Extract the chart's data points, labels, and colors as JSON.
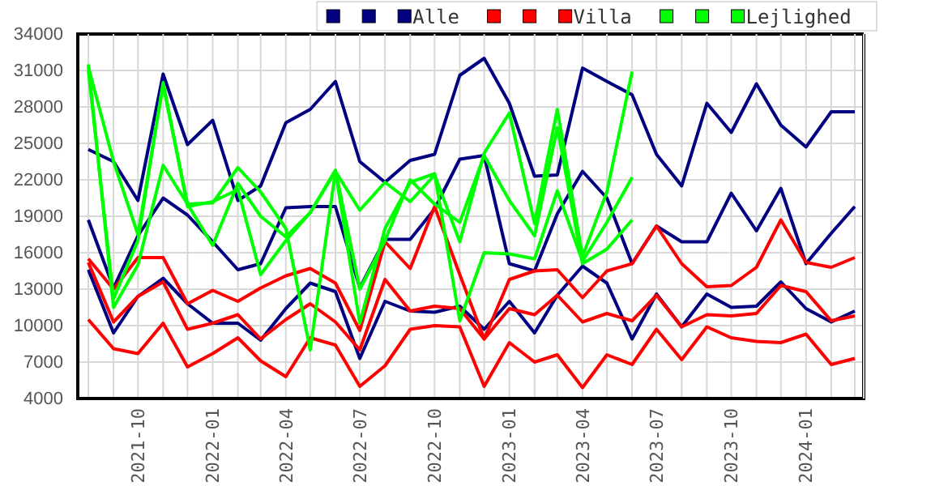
{
  "chart_data": {
    "type": "line",
    "x": [
      "2021-08",
      "2021-09",
      "2021-10",
      "2021-11",
      "2021-12",
      "2022-01",
      "2022-02",
      "2022-03",
      "2022-04",
      "2022-05",
      "2022-06",
      "2022-07",
      "2022-08",
      "2022-09",
      "2022-10",
      "2022-11",
      "2022-12",
      "2023-01",
      "2023-02",
      "2023-03",
      "2023-04",
      "2023-05",
      "2023-06",
      "2023-07",
      "2023-08",
      "2023-09",
      "2023-10",
      "2023-11",
      "2023-12",
      "2024-01",
      "2024-02",
      "2024-03"
    ],
    "series": [
      {
        "color": "#000080",
        "values": [
          24500,
          23500,
          20300,
          30700,
          24900,
          26900,
          20300,
          21500,
          26700,
          27800,
          30100,
          23500,
          21800,
          23600,
          24100,
          30600,
          32000,
          28300,
          22300,
          22400,
          31200,
          30100,
          29000,
          24100,
          21500,
          28300,
          25900,
          29900,
          26500,
          24700,
          27600,
          27600
        ]
      },
      {
        "color": "#000080",
        "values": [
          18700,
          13100,
          17400,
          20500,
          19100,
          16900,
          14600,
          15100,
          19700,
          19800,
          19800,
          13100,
          17100,
          17100,
          19600,
          23700,
          24000,
          15100,
          14500,
          19200,
          22700,
          20500,
          15100,
          18200,
          16900,
          16900,
          20900,
          17800,
          21300,
          15100,
          17600,
          19800
        ]
      },
      {
        "name": "Alle",
        "color": "#000080",
        "values": [
          14600,
          9400,
          12400,
          13900,
          11800,
          10200,
          10200,
          8800,
          11400,
          13500,
          12800,
          7300,
          12000,
          11200,
          11100,
          11600,
          9700,
          12000,
          9400,
          12500,
          14900,
          13500,
          8900,
          12600,
          9900,
          12600,
          11500,
          11600,
          13600,
          11400,
          10300,
          11200
        ]
      },
      {
        "color": "#ff0000",
        "values": [
          15500,
          13000,
          15600,
          15600,
          11800,
          12900,
          12000,
          13100,
          14100,
          14700,
          13500,
          9600,
          16900,
          14700,
          19800,
          14200,
          8900,
          13800,
          14500,
          14600,
          12300,
          14500,
          15100,
          18200,
          15100,
          13200,
          13300,
          14800,
          18700,
          15200,
          14800,
          15600
        ]
      },
      {
        "color": "#ff0000",
        "values": [
          15200,
          10300,
          12400,
          13600,
          9700,
          10200,
          10900,
          8900,
          10500,
          11800,
          10300,
          8000,
          13800,
          11200,
          11600,
          11400,
          8900,
          11400,
          10900,
          12500,
          10300,
          11000,
          10400,
          12500,
          9900,
          10900,
          10800,
          11000,
          13300,
          12800,
          10400,
          10800
        ]
      },
      {
        "name": "Villa",
        "color": "#ff0000",
        "values": [
          10500,
          8100,
          7700,
          10200,
          6600,
          7700,
          9000,
          7100,
          5800,
          9000,
          8400,
          5000,
          6700,
          9700,
          10000,
          9900,
          5000,
          8600,
          7000,
          7600,
          4900,
          7600,
          6800,
          9700,
          7200,
          9900,
          9000,
          8700,
          8600,
          9300,
          6800,
          7300
        ]
      },
      {
        "color": "#00ff00",
        "values": [
          31300,
          23500,
          17500,
          29800,
          20000,
          20100,
          23000,
          21000,
          18000,
          8000,
          22700,
          19500,
          21800,
          20200,
          22400,
          16900,
          24200,
          27500,
          18400,
          27800,
          15700,
          21000,
          30900,
          null,
          null,
          null,
          null,
          null,
          null,
          null,
          null,
          null
        ]
      },
      {
        "color": "#00ff00",
        "values": [
          31500,
          11500,
          15000,
          23200,
          20000,
          16600,
          21700,
          19000,
          17300,
          19300,
          22700,
          10200,
          18000,
          21800,
          22500,
          10400,
          16000,
          15900,
          15500,
          21100,
          15300,
          18500,
          22200,
          null,
          null,
          null,
          null,
          null,
          null,
          null,
          null,
          null
        ]
      },
      {
        "name": "Lejlighed",
        "color": "#00ff00",
        "values": [
          31000,
          12200,
          17000,
          30000,
          19800,
          20200,
          21200,
          14200,
          17000,
          19300,
          22800,
          13000,
          17000,
          22000,
          20000,
          18500,
          24000,
          20300,
          17400,
          26300,
          15100,
          16300,
          18700,
          null,
          null,
          null,
          null,
          null,
          null,
          null,
          null,
          null
        ]
      }
    ],
    "xlim": [
      "2021-07-19",
      "2024-03-12"
    ],
    "xticks": [
      {
        "value": "2021-08",
        "label": null
      },
      {
        "value": "2021-09",
        "label": null
      },
      {
        "value": "2021-10",
        "label": "2021-10"
      },
      {
        "value": "2021-11",
        "label": null
      },
      {
        "value": "2021-12",
        "label": null
      },
      {
        "value": "2022-01",
        "label": "2022-01"
      },
      {
        "value": "2022-02",
        "label": null
      },
      {
        "value": "2022-03",
        "label": null
      },
      {
        "value": "2022-04",
        "label": "2022-04"
      },
      {
        "value": "2022-05",
        "label": null
      },
      {
        "value": "2022-06",
        "label": null
      },
      {
        "value": "2022-07",
        "label": "2022-07"
      },
      {
        "value": "2022-08",
        "label": null
      },
      {
        "value": "2022-09",
        "label": null
      },
      {
        "value": "2022-10",
        "label": "2022-10"
      },
      {
        "value": "2022-11",
        "label": null
      },
      {
        "value": "2022-12",
        "label": null
      },
      {
        "value": "2023-01",
        "label": "2023-01"
      },
      {
        "value": "2023-02",
        "label": null
      },
      {
        "value": "2023-03",
        "label": null
      },
      {
        "value": "2023-04",
        "label": "2023-04"
      },
      {
        "value": "2023-05",
        "label": null
      },
      {
        "value": "2023-06",
        "label": null
      },
      {
        "value": "2023-07",
        "label": "2023-07"
      },
      {
        "value": "2023-08",
        "label": null
      },
      {
        "value": "2023-09",
        "label": null
      },
      {
        "value": "2023-10",
        "label": "2023-10"
      },
      {
        "value": "2023-11",
        "label": null
      },
      {
        "value": "2023-12",
        "label": null
      },
      {
        "value": "2024-01",
        "label": "2024-01"
      },
      {
        "value": "2024-02",
        "label": null
      },
      {
        "value": "2024-03",
        "label": null
      }
    ],
    "ylim": [
      4000,
      34000
    ],
    "yticks": [
      4000,
      7000,
      10000,
      13000,
      16000,
      19000,
      22000,
      25000,
      28000,
      31000,
      34000
    ],
    "grid": true,
    "legend": "top right",
    "marker": "none",
    "line_style": "solid"
  }
}
